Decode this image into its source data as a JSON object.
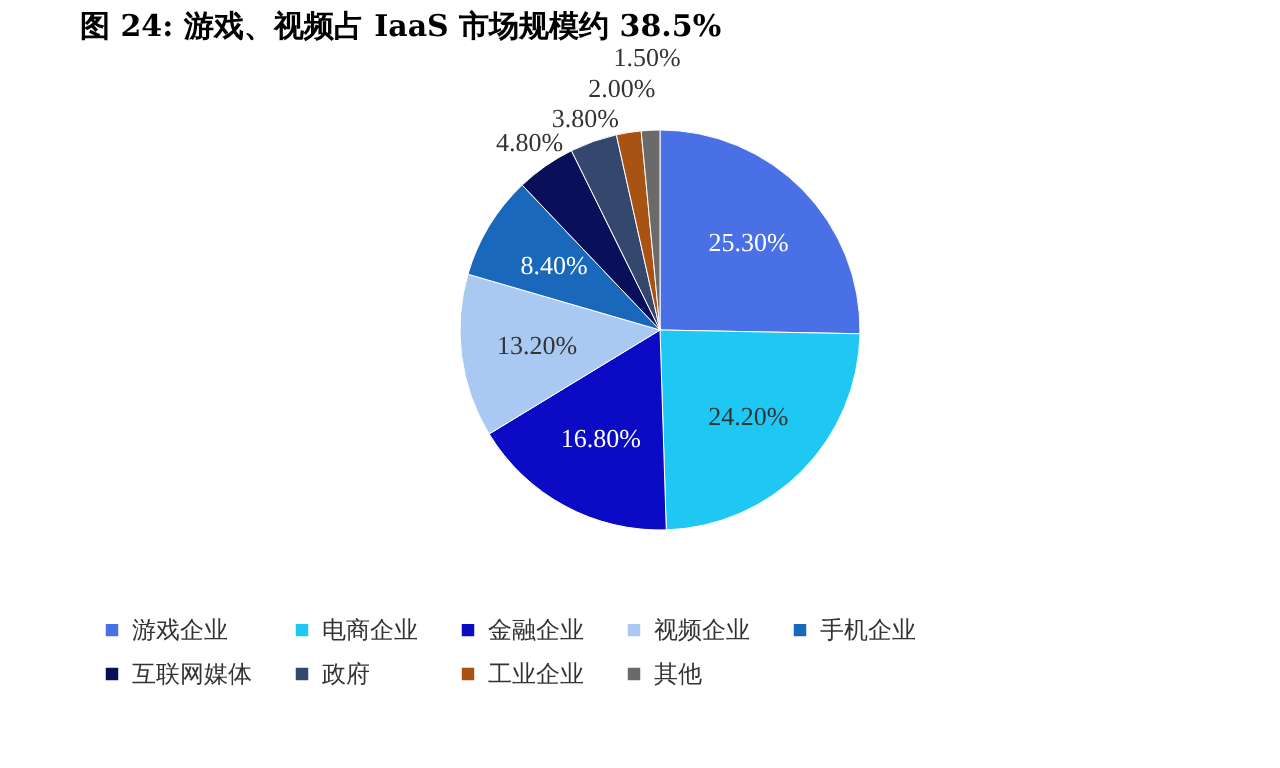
{
  "chart_data": {
    "type": "pie",
    "title": "图 24: 游戏、视频占 IaaS 市场规模约 38.5%",
    "categories": [
      "游戏企业",
      "电商企业",
      "金融企业",
      "视频企业",
      "手机企业",
      "互联网媒体",
      "政府",
      "工业企业",
      "其他"
    ],
    "values": [
      25.3,
      24.2,
      16.8,
      13.2,
      8.4,
      4.8,
      3.8,
      2.0,
      1.5
    ],
    "value_labels": [
      "25.30%",
      "24.20%",
      "16.80%",
      "13.20%",
      "8.40%",
      "4.80%",
      "3.80%",
      "2.00%",
      "1.50%"
    ],
    "colors": [
      "#4a70e6",
      "#1ec8f2",
      "#0b0bc6",
      "#a9c9f2",
      "#1a68bc",
      "#0a0f5a",
      "#34486e",
      "#a85314",
      "#6a6a6a"
    ],
    "legend": "bottom"
  }
}
